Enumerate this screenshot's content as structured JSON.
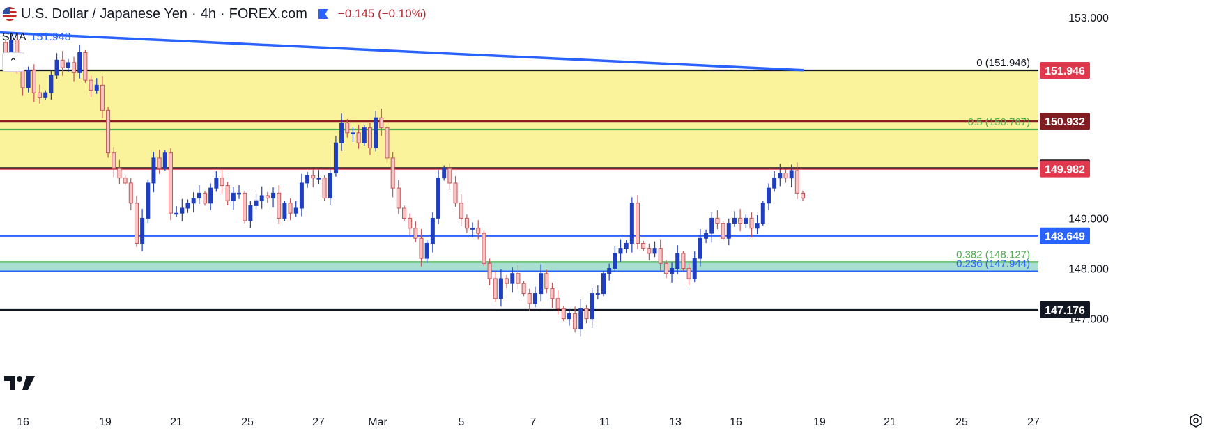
{
  "header": {
    "symbol": "U.S. Dollar / Japanese Yen",
    "sep1": "·",
    "interval": "4h",
    "sep2": "·",
    "source": "FOREX.com",
    "change": "−0.145 (−0.10%)"
  },
  "indicator": {
    "name": "SMA",
    "value": "151.948",
    "color": "#2962ff"
  },
  "colors": {
    "up": "#1f3fbf",
    "down": "#e57373",
    "down_fill": "#f8c4c4",
    "zone_fill": "#fbf29c",
    "green_zone": "#a8dfd1",
    "black_line": "#131722",
    "red_line": "#e0384c",
    "darkred_line": "#8b1d24",
    "green_line": "#4caf50",
    "blue_line": "#2962ff",
    "sma": "#2962ff"
  },
  "chart_data": {
    "type": "candlestick",
    "instrument": "U.S. Dollar / Japanese Yen",
    "interval": "4h",
    "y_ticks": [
      "153.000",
      "149.000",
      "148.000",
      "147.000"
    ],
    "x_ticks": [
      "16",
      "19",
      "21",
      "25",
      "27",
      "Mar",
      "5",
      "7",
      "11",
      "13",
      "16",
      "19",
      "21",
      "25",
      "27"
    ],
    "sma": {
      "name": "SMA",
      "start": 152.7,
      "end": 151.95
    },
    "zones": [
      {
        "from": 149.982,
        "to": 151.946,
        "color": "#fbf29c"
      },
      {
        "from": 147.944,
        "to": 148.127,
        "color": "#a8dfd1"
      }
    ],
    "levels": [
      {
        "value": 151.946,
        "label": "0 (151.946)",
        "tag": "151.946",
        "style": "black",
        "tag_style": "red"
      },
      {
        "value": 150.932,
        "label": "",
        "tag": "150.932",
        "style": "darkred",
        "tag_style": "darkred"
      },
      {
        "value": 150.767,
        "label": "0.5 (150.767)",
        "tag": "",
        "style": "green"
      },
      {
        "value": 150.0,
        "label": "",
        "tag": "150.000",
        "style": "black",
        "tag_style": "black"
      },
      {
        "value": 149.982,
        "label": "",
        "tag": "149.982",
        "style": "red",
        "tag_style": "red"
      },
      {
        "value": 148.649,
        "label": "",
        "tag": "148.649",
        "style": "blue",
        "tag_style": "blue"
      },
      {
        "value": 148.127,
        "label": "0.382 (148.127)",
        "tag": "",
        "style": "green"
      },
      {
        "value": 147.944,
        "label": "0.236 (147.944)",
        "tag": "",
        "style": "blue"
      },
      {
        "value": 147.176,
        "label": "",
        "tag": "147.176",
        "style": "black",
        "tag_style": "black"
      }
    ],
    "closes": [
      152.3,
      152.55,
      151.95,
      151.6,
      151.95,
      151.5,
      151.4,
      151.5,
      151.85,
      152.15,
      152.0,
      152.1,
      151.9,
      152.3,
      151.75,
      151.55,
      151.65,
      151.15,
      150.3,
      150.0,
      149.8,
      149.7,
      149.3,
      148.5,
      149.0,
      149.7,
      150.2,
      150.0,
      150.3,
      149.1,
      149.1,
      149.2,
      149.3,
      149.4,
      149.5,
      149.3,
      149.6,
      149.8,
      149.65,
      149.35,
      149.5,
      149.5,
      148.95,
      149.25,
      149.35,
      149.45,
      149.4,
      149.5,
      149.0,
      149.3,
      149.1,
      149.2,
      149.7,
      149.85,
      149.8,
      149.8,
      149.4,
      149.9,
      150.5,
      150.9,
      150.7,
      150.7,
      150.5,
      150.8,
      150.4,
      151.0,
      150.8,
      150.2,
      149.6,
      149.2,
      149.0,
      148.8,
      148.6,
      148.2,
      148.5,
      149.0,
      149.8,
      150.0,
      149.7,
      149.3,
      149.0,
      148.8,
      148.8,
      148.7,
      148.1,
      147.8,
      147.4,
      147.8,
      147.7,
      147.9,
      147.7,
      147.5,
      147.3,
      147.5,
      147.9,
      147.6,
      147.4,
      147.2,
      147.0,
      147.1,
      146.8,
      147.2,
      147.0,
      147.5,
      147.5,
      147.9,
      148.0,
      148.3,
      148.4,
      148.5,
      149.3,
      148.5,
      148.4,
      148.3,
      148.4,
      148.1,
      147.9,
      148.0,
      148.3,
      148.0,
      147.8,
      148.2,
      148.6,
      148.7,
      149.0,
      148.9,
      148.6,
      148.9,
      149.0,
      148.9,
      149.0,
      148.8,
      148.9,
      149.3,
      149.6,
      149.8,
      149.9,
      149.8,
      149.95,
      149.5,
      149.4
    ]
  }
}
